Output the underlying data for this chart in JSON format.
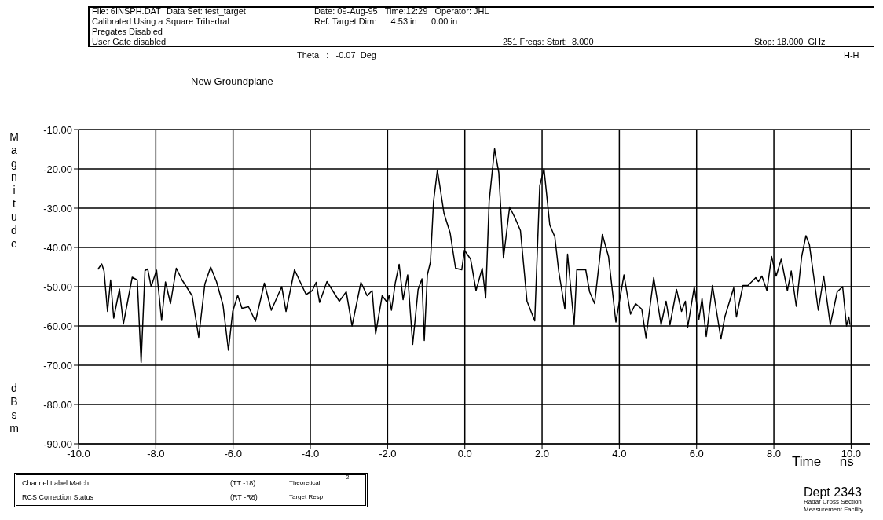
{
  "chart_data": {
    "type": "line",
    "title": "New Groundplane",
    "xlabel": "Time     ns",
    "ylabel": "Magnitude dBsm",
    "annotations": [
      "File: 6INSPH.DAT",
      "Data Set: test_target",
      "Date: 09-Aug-95   Time:12:29   Operator: JHL",
      "Calibrated Using a Square Trihedral",
      "Ref. Target Dim:      4.53 in      0.00 in",
      "Pregates Disabled",
      "User Gate disabled",
      "251 Freqs: Start:  8.000",
      "Stop: 18.000  GHz",
      "Theta   :   -0.07  Deg",
      "H-H",
      "Channel Label Match",
      "RCS Correction Status",
      "(TT -18)",
      "(RT -R8)",
      "Theoretical",
      "Target Resp.",
      "2",
      "Dept 2343",
      "Radar Cross Section",
      "Measurement Facility"
    ],
    "x": [
      -9.5,
      -9.4,
      -9.34,
      -9.25,
      -9.17,
      -9.09,
      -8.94,
      -8.84,
      -8.61,
      -8.48,
      -8.38,
      -8.28,
      -8.21,
      -8.12,
      -7.98,
      -7.85,
      -7.75,
      -7.62,
      -7.47,
      -7.32,
      -7.06,
      -6.89,
      -6.73,
      -6.58,
      -6.43,
      -6.26,
      -6.12,
      -6.01,
      -5.88,
      -5.77,
      -5.6,
      -5.42,
      -5.19,
      -5.01,
      -4.74,
      -4.63,
      -4.41,
      -4.11,
      -3.95,
      -3.85,
      -3.76,
      -3.57,
      -3.25,
      -3.07,
      -2.92,
      -2.69,
      -2.53,
      -2.4,
      -2.31,
      -2.14,
      -2.01,
      -1.96,
      -1.9,
      -1.8,
      -1.7,
      -1.6,
      -1.48,
      -1.35,
      -1.21,
      -1.11,
      -1.05,
      -0.97,
      -0.89,
      -0.81,
      -0.71,
      -0.54,
      -0.38,
      -0.24,
      -0.08,
      -0.01,
      0.15,
      0.29,
      0.45,
      0.54,
      0.63,
      0.77,
      0.88,
      1.0,
      1.16,
      1.31,
      1.44,
      1.61,
      1.81,
      1.94,
      2.05,
      2.2,
      2.33,
      2.43,
      2.59,
      2.66,
      2.83,
      2.9,
      3.13,
      3.23,
      3.36,
      3.56,
      3.72,
      3.91,
      4.12,
      4.29,
      4.42,
      4.58,
      4.69,
      4.89,
      5.08,
      5.21,
      5.31,
      5.48,
      5.61,
      5.71,
      5.77,
      5.94,
      6.06,
      6.14,
      6.25,
      6.41,
      6.63,
      6.73,
      6.96,
      7.03,
      7.2,
      7.33,
      7.53,
      7.6,
      7.69,
      7.82,
      7.94,
      8.06,
      8.19,
      8.35,
      8.45,
      8.58,
      8.72,
      8.83,
      8.92,
      9.15,
      9.29,
      9.46,
      9.64,
      9.78,
      9.88,
      9.94,
      9.97
    ],
    "series": [
      {
        "color": "#000000",
        "values": [
          -45.6,
          -44.2,
          -46,
          -56.3,
          -48.3,
          -58,
          -50.6,
          -59.5,
          -47.6,
          -48.3,
          -69.3,
          -45.9,
          -45.5,
          -50,
          -45.8,
          -58.6,
          -48.8,
          -54.3,
          -45.3,
          -48.3,
          -52.3,
          -62.9,
          -49.3,
          -45,
          -48.7,
          -54.7,
          -66.2,
          -56.3,
          -52.2,
          -55.5,
          -55.1,
          -58.8,
          -49.1,
          -56,
          -50,
          -56.3,
          -45.7,
          -52,
          -51,
          -48.9,
          -54,
          -48.7,
          -53.7,
          -51.3,
          -60,
          -48.9,
          -52.3,
          -51,
          -62,
          -52.3,
          -54,
          -52.2,
          -56,
          -49,
          -44.3,
          -53.3,
          -47,
          -64.7,
          -50.7,
          -48,
          -63.7,
          -47,
          -43.7,
          -28.3,
          -20.3,
          -31.3,
          -36.3,
          -45.3,
          -45.7,
          -40.7,
          -43,
          -51,
          -45.3,
          -52.9,
          -28.3,
          -14.9,
          -21,
          -42.7,
          -29.7,
          -32.7,
          -35.7,
          -53.7,
          -58.7,
          -24.3,
          -20,
          -34.3,
          -37.3,
          -46,
          -55.7,
          -41.7,
          -59.7,
          -45.7,
          -45.7,
          -51.3,
          -54.3,
          -36.7,
          -42.3,
          -59,
          -47,
          -57,
          -54.3,
          -55.7,
          -63,
          -47.7,
          -59.7,
          -53.7,
          -59.7,
          -50.7,
          -56.3,
          -53.7,
          -60.3,
          -50,
          -58.3,
          -53,
          -62.7,
          -49.7,
          -63.3,
          -57.7,
          -50.3,
          -57.7,
          -49.7,
          -49.7,
          -47.7,
          -48.7,
          -47.3,
          -51,
          -42.3,
          -47.3,
          -43,
          -51,
          -46,
          -55,
          -42.3,
          -37,
          -39.3,
          -56,
          -47.3,
          -59.7,
          -51.3,
          -50,
          -60,
          -57.7,
          -59.7
        ]
      }
    ],
    "xlim": [
      -10,
      10.5
    ],
    "ylim": [
      -90,
      -10
    ],
    "xticks": [
      {
        "value": -10,
        "label": "-10.0"
      },
      {
        "value": -8,
        "label": "-8.0"
      },
      {
        "value": -6,
        "label": "-6.0"
      },
      {
        "value": -4,
        "label": "-4.0"
      },
      {
        "value": -2,
        "label": "-2.0"
      },
      {
        "value": 0,
        "label": "0.0"
      },
      {
        "value": 2,
        "label": "2.0"
      },
      {
        "value": 4,
        "label": "4.0"
      },
      {
        "value": 6,
        "label": "6.0"
      },
      {
        "value": 8,
        "label": "8.0"
      },
      {
        "value": 10,
        "label": "10.0"
      }
    ],
    "yticks": [
      {
        "value": -90,
        "label": "-90.00"
      },
      {
        "value": -80,
        "label": "-80.00"
      },
      {
        "value": -70,
        "label": "-70.00"
      },
      {
        "value": -60,
        "label": "-60.00"
      },
      {
        "value": -50,
        "label": "-50.00"
      },
      {
        "value": -40,
        "label": "-40.00"
      },
      {
        "value": -30,
        "label": "-30.00"
      },
      {
        "value": -20,
        "label": "-20.00"
      },
      {
        "value": -10,
        "label": "-10.00"
      }
    ],
    "grid": true,
    "marker": "none",
    "line_style": "solid"
  }
}
